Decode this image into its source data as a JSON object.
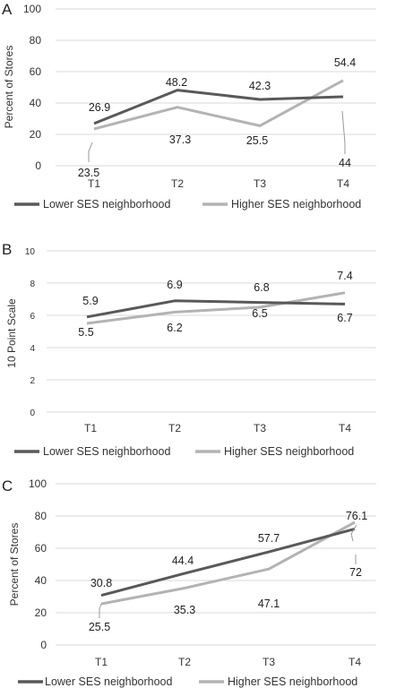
{
  "colors": {
    "lower": "#595959",
    "higher": "#b3b3b3",
    "grid": "#d9d9d9"
  },
  "chart_data": [
    {
      "panel": "A",
      "type": "line",
      "categories": [
        "T1",
        "T2",
        "T3",
        "T4"
      ],
      "ylabel": "Percent of Stores",
      "ylim": [
        0,
        100
      ],
      "yticks": [
        "0",
        "20",
        "40",
        "60",
        "80",
        "100"
      ],
      "grid": true,
      "legend_placement": "bottom",
      "series": [
        {
          "name": "Lower SES neighborhood",
          "values": [
            26.9,
            48.2,
            42.3,
            44
          ],
          "labels": [
            "26.9",
            "48.2",
            "42.3",
            "44"
          ]
        },
        {
          "name": "Higher SES neighborhood",
          "values": [
            23.5,
            37.3,
            25.5,
            54.4
          ],
          "labels": [
            "23.5",
            "37.3",
            "25.5",
            "54.4"
          ]
        }
      ]
    },
    {
      "panel": "B",
      "type": "line",
      "categories": [
        "T1",
        "T2",
        "T3",
        "T4"
      ],
      "ylabel": "10 Point Scale",
      "ylim": [
        0,
        10
      ],
      "yticks": [
        "0",
        "2",
        "4",
        "6",
        "8",
        "10"
      ],
      "grid": true,
      "legend_placement": "bottom",
      "series": [
        {
          "name": "Lower SES neighborhood",
          "values": [
            5.9,
            6.9,
            6.8,
            6.7
          ],
          "labels": [
            "5.9",
            "6.9",
            "6.8",
            "6.7"
          ]
        },
        {
          "name": "Higher SES neighborhood",
          "values": [
            5.5,
            6.2,
            6.5,
            7.4
          ],
          "labels": [
            "5.5",
            "6.2",
            "6.5",
            "7.4"
          ]
        }
      ]
    },
    {
      "panel": "C",
      "type": "line",
      "categories": [
        "T1",
        "T2",
        "T3",
        "T4"
      ],
      "ylabel": "Percent of Stores",
      "ylim": [
        0,
        100
      ],
      "yticks": [
        "0",
        "20",
        "40",
        "60",
        "80",
        "100"
      ],
      "grid": true,
      "legend_placement": "bottom",
      "series": [
        {
          "name": "Lower SES neighborhood",
          "values": [
            30.8,
            44.4,
            57.7,
            72
          ],
          "labels": [
            "30.8",
            "44.4",
            "57.7",
            "72"
          ]
        },
        {
          "name": "Higher SES neighborhood",
          "values": [
            25.5,
            35.3,
            47.1,
            76.1
          ],
          "labels": [
            "25.5",
            "35.3",
            "47.1",
            "76.1"
          ]
        }
      ]
    }
  ]
}
